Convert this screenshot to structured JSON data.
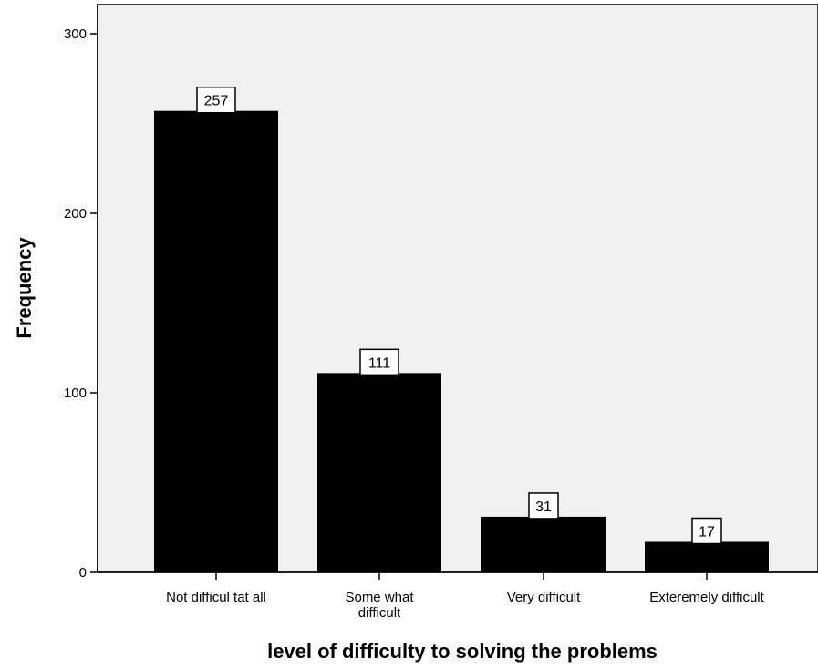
{
  "chart_data": {
    "type": "bar",
    "title": "",
    "xlabel": "level of difficulty to solving the problems",
    "ylabel": "Frequency",
    "categories": [
      [
        "Not difficul tat all"
      ],
      [
        "Some what",
        "difficult"
      ],
      [
        "Very difficult"
      ],
      [
        "Exteremely difficult"
      ]
    ],
    "values": [
      257,
      111,
      31,
      17
    ],
    "data_labels": [
      "257",
      "111",
      "31",
      "17"
    ],
    "ylim": [
      0,
      300
    ],
    "yticks": [
      0,
      100,
      200,
      300
    ],
    "ytick_labels": [
      "0",
      "100",
      "200",
      "300"
    ],
    "grid": false,
    "legend": "none",
    "colors": {
      "bar_fill": "#000000",
      "plot_background": "#f0f0f0",
      "axis": "#000000",
      "label_box_fill": "#ffffff",
      "label_box_stroke": "#000000"
    }
  }
}
